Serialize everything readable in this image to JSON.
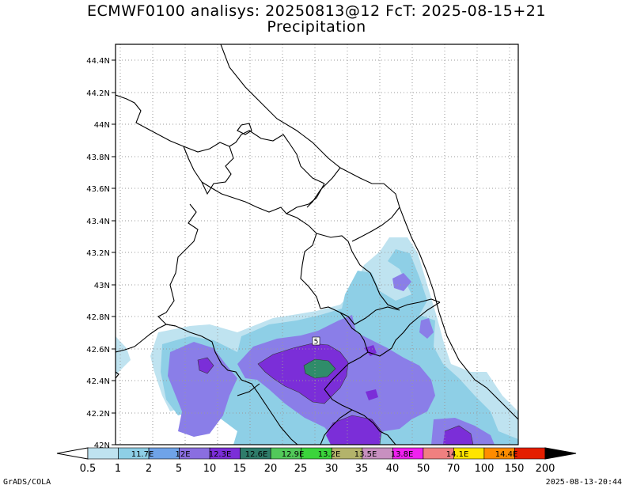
{
  "title": "ECMWF0100 analisys: 20250813@12 FcT: 2025-08-15+21",
  "subtitle": "Precipitation",
  "lat_labels": [
    "44.4N",
    "44.2N",
    "44N",
    "43.8N",
    "43.6N",
    "43.4N",
    "43.2N",
    "43N",
    "42.8N",
    "42.6N",
    "42.4N",
    "42.2N",
    "42N"
  ],
  "lon_labels": [
    "11.7E",
    "12E",
    "12.3E",
    "12.6E",
    "12.9E",
    "13.2E",
    "13.5E",
    "13.8E",
    "14.1E",
    "14.4E"
  ],
  "colorbar": {
    "levels": [
      "0.5",
      "1",
      "2",
      "5",
      "10",
      "15",
      "20",
      "25",
      "30",
      "35",
      "40",
      "50",
      "70",
      "100",
      "150",
      "200"
    ],
    "colors": [
      "#bfe3f0",
      "#8ecfe6",
      "#6fa3e8",
      "#8a6ee0",
      "#7b2ed8",
      "#2f7c6a",
      "#52c95a",
      "#3bd43b",
      "#b3b36b",
      "#c890c0",
      "#f020f0",
      "#f08080",
      "#ffe400",
      "#ff8c00",
      "#e41e00",
      "#7a0000"
    ]
  },
  "map_marker": "5",
  "footer_left": "GrADS/COLA",
  "footer_right": "2025-08-13-20:44",
  "map_colors": {
    "frame": "#000000",
    "grid": "#9a9a9a",
    "level_0_5": "#bfe3f0",
    "level_1": "#8ecfe6",
    "level_2": "#8a7ee8",
    "level_5": "#7b2ed8",
    "level_10": "#2f8c6a"
  }
}
